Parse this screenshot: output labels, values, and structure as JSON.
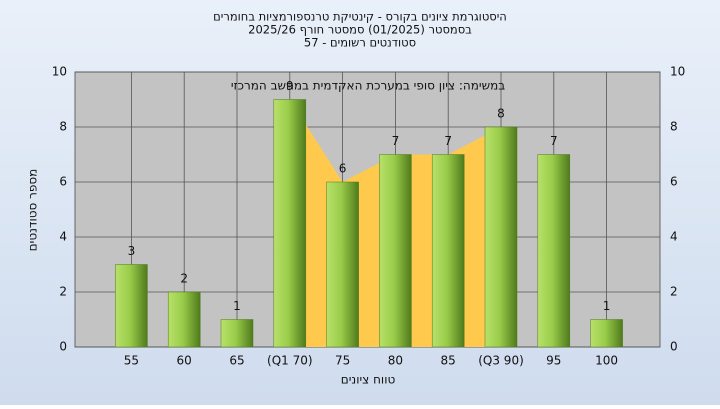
{
  "chart_data": {
    "type": "bar",
    "title": "היסטוגרמת ציונים בקורס - קינטיקת טרנספורמציות בחומרים",
    "subtitle": "בסמסטר  (01/2025)  סמסטר חורף 2025/26",
    "subtitle2": "סטודנטים רשומים - 57",
    "annotation": "במשימה: ציון סופי במערכת האקדמית במחשב המרכזי",
    "x_label": "טווח ציונים",
    "y_label": "מספר סטודנטים",
    "categories": [
      "55",
      "60",
      "65",
      "(Q1 70)",
      "75",
      "80",
      "85",
      "(Q3 90)",
      "95",
      "100"
    ],
    "values": [
      3,
      2,
      1,
      9,
      6,
      7,
      7,
      8,
      7,
      1
    ],
    "color": "#9acd4a",
    "ylim": [
      0,
      10
    ],
    "yticks": [
      0,
      2,
      4,
      6,
      8,
      10
    ],
    "grid": true
  }
}
